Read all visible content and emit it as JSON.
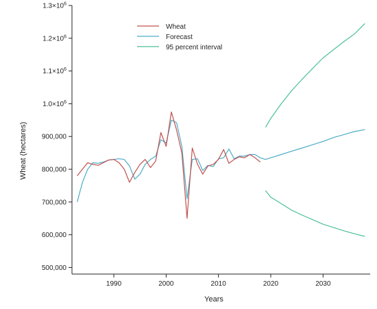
{
  "chart_data": {
    "type": "line",
    "title": "",
    "xlabel": "Years",
    "ylabel": "Wheat (hectares)",
    "xlim": [
      1982,
      2039
    ],
    "ylim": [
      480000,
      1300000
    ],
    "x_ticks": [
      {
        "value": 1990,
        "label": "1990"
      },
      {
        "value": 2000,
        "label": "2000"
      },
      {
        "value": 2010,
        "label": "2010"
      },
      {
        "value": 2020,
        "label": "2020"
      },
      {
        "value": 2030,
        "label": "2030"
      }
    ],
    "y_ticks": [
      {
        "value": 500000,
        "label": "500,000",
        "exp": ""
      },
      {
        "value": 600000,
        "label": "600,000",
        "exp": ""
      },
      {
        "value": 700000,
        "label": "700,000",
        "exp": ""
      },
      {
        "value": 800000,
        "label": "800,000",
        "exp": ""
      },
      {
        "value": 900000,
        "label": "900,000",
        "exp": ""
      },
      {
        "value": 1000000,
        "label": "1.0×10",
        "exp": "6"
      },
      {
        "value": 1100000,
        "label": "1.1×10",
        "exp": "6"
      },
      {
        "value": 1200000,
        "label": "1.2×10",
        "exp": "6"
      },
      {
        "value": 1300000,
        "label": "1.3×10",
        "exp": "6"
      }
    ],
    "legend_position": "top-center",
    "series": [
      {
        "name": "Wheat",
        "color": "#c0504d",
        "x": [
          1983,
          1984,
          1985,
          1986,
          1987,
          1988,
          1989,
          1990,
          1991,
          1992,
          1993,
          1994,
          1995,
          1996,
          1997,
          1998,
          1999,
          2000,
          2001,
          2002,
          2003,
          2004,
          2005,
          2006,
          2007,
          2008,
          2009,
          2010,
          2011,
          2012,
          2013,
          2014,
          2015,
          2016,
          2017,
          2018
        ],
        "y": [
          780000,
          800000,
          820000,
          815000,
          812000,
          820000,
          828000,
          830000,
          820000,
          800000,
          760000,
          790000,
          815000,
          830000,
          805000,
          825000,
          912000,
          870000,
          975000,
          920000,
          850000,
          650000,
          865000,
          815000,
          785000,
          810000,
          815000,
          830000,
          860000,
          818000,
          830000,
          838000,
          835000,
          845000,
          835000,
          822000
        ]
      },
      {
        "name": "Forecast",
        "color": "#4bacc6",
        "x": [
          1983,
          1984,
          1985,
          1986,
          1987,
          1988,
          1989,
          1990,
          1991,
          1992,
          1993,
          1994,
          1995,
          1996,
          1997,
          1998,
          1999,
          2000,
          2001,
          2002,
          2003,
          2004,
          2005,
          2006,
          2007,
          2008,
          2009,
          2010,
          2011,
          2012,
          2013,
          2014,
          2015,
          2016,
          2017,
          2018,
          2019,
          2020,
          2022,
          2024,
          2026,
          2028,
          2030,
          2032,
          2034,
          2036,
          2038
        ],
        "y": [
          700000,
          760000,
          800000,
          820000,
          818000,
          822000,
          828000,
          830000,
          832000,
          830000,
          810000,
          770000,
          785000,
          815000,
          830000,
          840000,
          890000,
          880000,
          950000,
          942000,
          870000,
          710000,
          830000,
          832000,
          796000,
          812000,
          808000,
          832000,
          835000,
          862000,
          832000,
          840000,
          840000,
          845000,
          845000,
          835000,
          830000,
          835000,
          845000,
          855000,
          865000,
          875000,
          885000,
          897000,
          906000,
          915000,
          921000
        ]
      },
      {
        "name": "95 percent interval",
        "color": "#4bbf9a",
        "x": [
          2019,
          2020,
          2022,
          2024,
          2026,
          2028,
          2030,
          2032,
          2034,
          2036,
          2038
        ],
        "y": [
          928000,
          955000,
          1000000,
          1040000,
          1075000,
          1108000,
          1140000,
          1165000,
          1190000,
          1213000,
          1245000
        ]
      },
      {
        "name": "",
        "color": "#4bbf9a",
        "x": [
          2019,
          2020,
          2022,
          2024,
          2026,
          2028,
          2030,
          2032,
          2034,
          2036,
          2038
        ],
        "y": [
          735000,
          715000,
          695000,
          675000,
          660000,
          646000,
          632000,
          622000,
          612000,
          603000,
          595000
        ]
      }
    ]
  }
}
